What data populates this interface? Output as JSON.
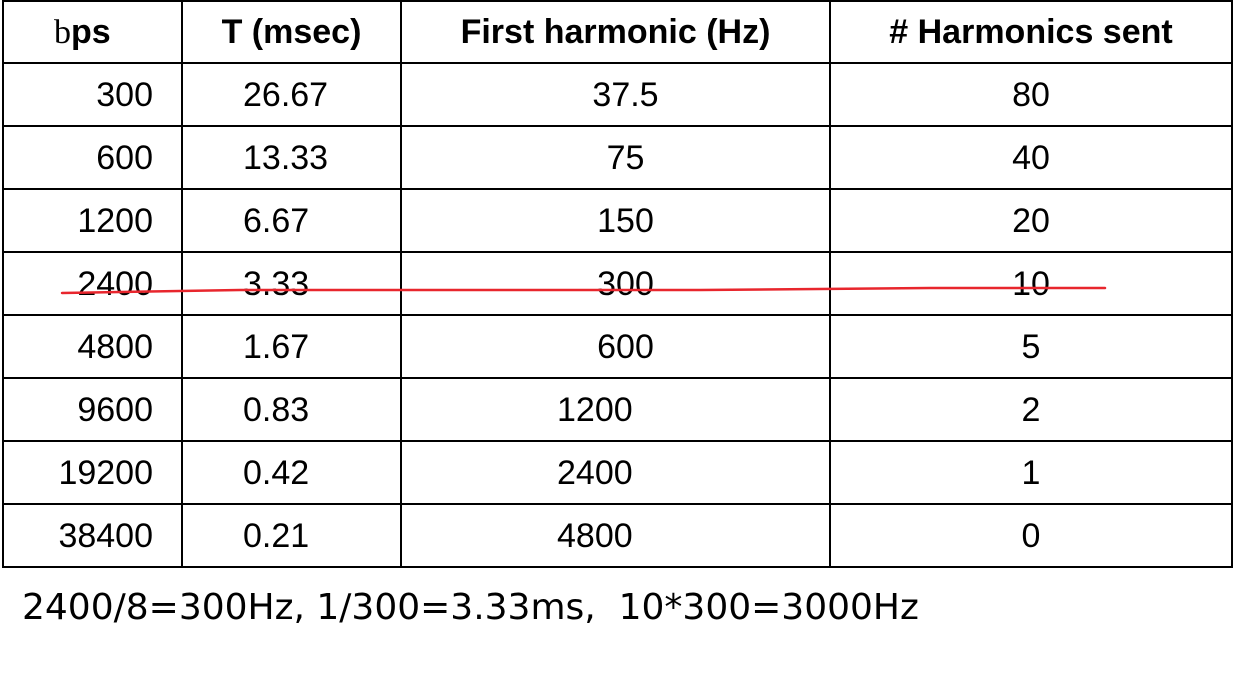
{
  "table": {
    "headers": {
      "bps_prefix": "b",
      "bps_suffix": "ps",
      "period": "T (msec)",
      "first_harmonic": "First harmonic (Hz)",
      "harmonics_sent": "# Harmonics sent"
    },
    "rows": [
      {
        "bps": "300",
        "period": "26.67",
        "first_harmonic": "37.5",
        "harmonics_sent": "80"
      },
      {
        "bps": "600",
        "period": "13.33",
        "first_harmonic": "75",
        "harmonics_sent": "40"
      },
      {
        "bps": "1200",
        "period": "6.67",
        "first_harmonic": "150",
        "harmonics_sent": "20"
      },
      {
        "bps": "2400",
        "period": "3.33",
        "first_harmonic": "300",
        "harmonics_sent": "10"
      },
      {
        "bps": "4800",
        "period": "1.67",
        "first_harmonic": "600",
        "harmonics_sent": "5"
      },
      {
        "bps": "9600",
        "period": "0.83",
        "first_harmonic": "1200",
        "harmonics_sent": "2"
      },
      {
        "bps": "19200",
        "period": "0.42",
        "first_harmonic": "2400",
        "harmonics_sent": "1"
      },
      {
        "bps": "38400",
        "period": "0.21",
        "first_harmonic": "4800",
        "harmonics_sent": "0"
      }
    ]
  },
  "annotation": {
    "red_underline_color": "#e8262d"
  },
  "formula": {
    "text": "2400/8=300Hz, 1/300=3.33ms,  10*300=3000Hz"
  }
}
